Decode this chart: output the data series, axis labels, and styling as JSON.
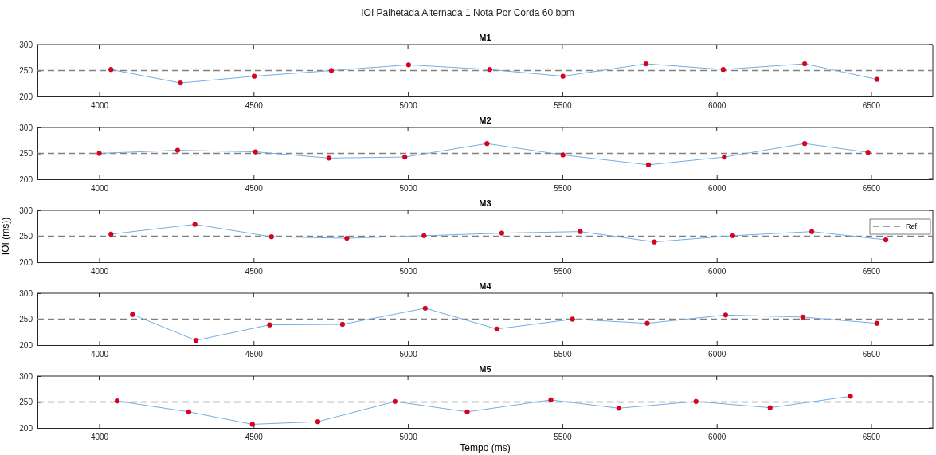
{
  "chart_data": [
    {
      "type": "line",
      "title": "M1",
      "annotations": [
        "IOI Palhetada Alternada 1 Nota Por Corda 60 bpm"
      ],
      "marker": "circle",
      "xlim": [
        3800,
        6700
      ],
      "xticks": [
        4000,
        4500,
        5000,
        5500,
        6000,
        6500
      ],
      "ylim": [
        200,
        300
      ],
      "yticks": [
        200,
        250,
        300
      ],
      "ref_lines": [
        {
          "axis": "y",
          "value": 250,
          "color": "#808080",
          "line_style": "dashed"
        }
      ],
      "series": [
        {
          "color": "#72aee6",
          "x": [
            4038,
            4263,
            4502,
            4752,
            5002,
            5265,
            5502,
            5771,
            6021,
            6285,
            6519
          ],
          "values": [
            252,
            226,
            239,
            250,
            261,
            252,
            239,
            263,
            252,
            263,
            233
          ]
        }
      ]
    },
    {
      "type": "line",
      "title": "M2",
      "marker": "circle",
      "xlim": [
        3800,
        6700
      ],
      "xticks": [
        4000,
        4500,
        5000,
        5500,
        6000,
        6500
      ],
      "ylim": [
        200,
        300
      ],
      "yticks": [
        200,
        250,
        300
      ],
      "ref_lines": [
        {
          "axis": "y",
          "value": 250,
          "color": "#808080",
          "line_style": "dashed"
        }
      ],
      "series": [
        {
          "color": "#72aee6",
          "x": [
            4000,
            4254,
            4506,
            4744,
            4990,
            5256,
            5502,
            5779,
            6025,
            6285,
            6490
          ],
          "values": [
            250,
            256,
            253,
            241,
            243,
            269,
            247,
            228,
            243,
            269,
            252
          ]
        }
      ]
    },
    {
      "type": "line",
      "title": "M3",
      "ylabel": "IOI (ms))",
      "legend": "top right",
      "marker": "circle",
      "xlim": [
        3800,
        6700
      ],
      "xticks": [
        4000,
        4500,
        5000,
        5500,
        6000,
        6500
      ],
      "ylim": [
        200,
        300
      ],
      "yticks": [
        200,
        250,
        300
      ],
      "ref_lines": [
        {
          "axis": "y",
          "value": 250,
          "label": "Ref",
          "color": "#808080",
          "line_style": "dashed"
        }
      ],
      "series": [
        {
          "color": "#72aee6",
          "x": [
            4038,
            4310,
            4558,
            4802,
            5052,
            5304,
            5558,
            5798,
            6052,
            6308,
            6548
          ],
          "values": [
            254,
            273,
            249,
            246,
            251,
            256,
            259,
            239,
            251,
            259,
            243
          ]
        }
      ]
    },
    {
      "type": "line",
      "title": "M4",
      "marker": "circle",
      "xlim": [
        3800,
        6700
      ],
      "xticks": [
        4000,
        4500,
        5000,
        5500,
        6000,
        6500
      ],
      "ylim": [
        200,
        300
      ],
      "yticks": [
        200,
        250,
        300
      ],
      "ref_lines": [
        {
          "axis": "y",
          "value": 250,
          "color": "#808080",
          "line_style": "dashed"
        }
      ],
      "series": [
        {
          "color": "#72aee6",
          "x": [
            4108,
            4313,
            4552,
            4788,
            5056,
            5288,
            5533,
            5775,
            6029,
            6279,
            6519
          ],
          "values": [
            259,
            209,
            239,
            240,
            271,
            231,
            250,
            242,
            258,
            254,
            242
          ]
        }
      ]
    },
    {
      "type": "line",
      "title": "M5",
      "xlabel": "Tempo (ms)",
      "marker": "circle",
      "xlim": [
        3800,
        6700
      ],
      "xticks": [
        4000,
        4500,
        5000,
        5500,
        6000,
        6500
      ],
      "ylim": [
        200,
        300
      ],
      "yticks": [
        200,
        250,
        300
      ],
      "ref_lines": [
        {
          "axis": "y",
          "value": 250,
          "color": "#808080",
          "line_style": "dashed"
        }
      ],
      "series": [
        {
          "color": "#72aee6",
          "x": [
            4058,
            4290,
            4496,
            4708,
            4958,
            5192,
            5463,
            5683,
            5933,
            6173,
            6433
          ],
          "values": [
            252,
            231,
            207,
            212,
            251,
            231,
            254,
            238,
            251,
            239,
            261
          ]
        }
      ]
    }
  ]
}
